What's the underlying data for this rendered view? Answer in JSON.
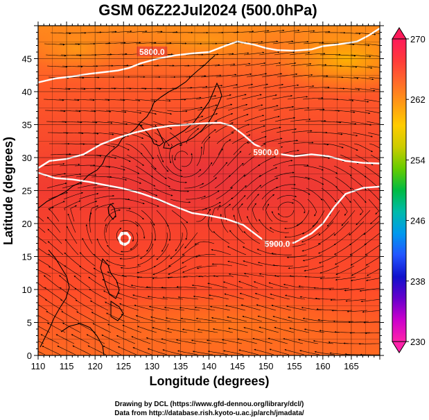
{
  "title": "GSM 06Z22Jul2024 (500.0hPa)",
  "xlabel": "Longitude (degrees)",
  "ylabel": "Latitude  (degrees)",
  "x_ticks": [
    "110",
    "115",
    "120",
    "125",
    "130",
    "135",
    "140",
    "145",
    "150",
    "155",
    "160",
    "165"
  ],
  "y_ticks": [
    "0",
    "5",
    "10",
    "15",
    "20",
    "25",
    "30",
    "35",
    "40",
    "45"
  ],
  "colorbar": {
    "ticks": [
      "270",
      "262",
      "254",
      "246",
      "238",
      "230"
    ],
    "stops": [
      "#ff1a5a",
      "#ff3a3a",
      "#ff6a2a",
      "#ff9a14",
      "#ffcc00",
      "#cccc00",
      "#66cc00",
      "#00bb44",
      "#00bbaa",
      "#0099ee",
      "#2255ff",
      "#1111cc",
      "#6600cc",
      "#cc00cc",
      "#ff22aa"
    ]
  },
  "contour_labels": [
    "5800.0",
    "5900.0",
    "5900.0"
  ],
  "footer": {
    "line1": "Drawing by DCL (https://www.gfd-dennou.org/library/dcl/)",
    "line2": "Data from http://database.rish.kyoto-u.ac.jp/arch/jmadata/"
  },
  "chart_data": {
    "type": "heatmap",
    "title": "GSM 06Z22Jul2024 (500.0hPa)",
    "xlabel": "Longitude (degrees)",
    "ylabel": "Latitude  (degrees)",
    "xlim": [
      110,
      170
    ],
    "ylim": [
      0,
      50
    ],
    "colorbar_range": [
      230,
      270
    ],
    "colorbar_ticks": [
      230,
      238,
      246,
      254,
      262,
      270
    ],
    "contours": [
      {
        "label": "5800.0",
        "points": [
          [
            110,
            41.4
          ],
          [
            113,
            42
          ],
          [
            116,
            42.3
          ],
          [
            119,
            42.7
          ],
          [
            122,
            43
          ],
          [
            124,
            43.2
          ],
          [
            126,
            43.6
          ],
          [
            128,
            44.3
          ],
          [
            131,
            45
          ],
          [
            134,
            45.5
          ],
          [
            137,
            45.8
          ],
          [
            140,
            46
          ],
          [
            143,
            47
          ],
          [
            145,
            47.6
          ],
          [
            148,
            47.1
          ],
          [
            150,
            46.6
          ],
          [
            152,
            46.3
          ],
          [
            155,
            46.2
          ],
          [
            158,
            46.4
          ],
          [
            160,
            46.9
          ],
          [
            163,
            47.2
          ],
          [
            166,
            47.6
          ],
          [
            168,
            48.5
          ],
          [
            170,
            49.6
          ]
        ]
      },
      {
        "label": "5900.0",
        "points": [
          [
            110,
            28.4
          ],
          [
            112,
            29.5
          ],
          [
            115,
            29.8
          ],
          [
            118,
            30.5
          ],
          [
            121,
            32
          ],
          [
            124,
            33
          ],
          [
            127,
            33.8
          ],
          [
            130,
            34.4
          ],
          [
            133,
            34.8
          ],
          [
            136,
            35
          ],
          [
            139,
            35.2
          ],
          [
            142,
            35.3
          ],
          [
            144,
            34.8
          ],
          [
            146,
            33.5
          ],
          [
            148,
            32
          ],
          [
            150,
            31.2
          ],
          [
            152,
            30.6
          ],
          [
            155,
            30.2
          ],
          [
            158,
            30.5
          ],
          [
            161,
            30.2
          ],
          [
            164,
            29.5
          ],
          [
            167,
            29.2
          ],
          [
            170,
            29.1
          ]
        ]
      },
      {
        "label": "5900.0",
        "points": [
          [
            110,
            27.7
          ],
          [
            113,
            26.9
          ],
          [
            116,
            26.7
          ],
          [
            119,
            26.3
          ],
          [
            122,
            25.8
          ],
          [
            125,
            25.3
          ],
          [
            128,
            24.6
          ],
          [
            131,
            23.7
          ],
          [
            134,
            22.6
          ],
          [
            137,
            21.6
          ],
          [
            140,
            21.2
          ],
          [
            143,
            20.7
          ],
          [
            146,
            19.8
          ],
          [
            148,
            18.5
          ],
          [
            150,
            17.2
          ],
          [
            152,
            16.8
          ],
          [
            155,
            17.1
          ],
          [
            158,
            18.5
          ],
          [
            160,
            20
          ],
          [
            162,
            22.5
          ],
          [
            164,
            24.5
          ],
          [
            167,
            25.4
          ],
          [
            170,
            25.6
          ]
        ]
      },
      {
        "label": "",
        "points": [
          [
            125.2,
            16.7
          ],
          [
            125.9,
            17.1
          ],
          [
            126.2,
            17.9
          ],
          [
            125.6,
            18.6
          ],
          [
            124.6,
            18.6
          ],
          [
            124.1,
            17.8
          ],
          [
            124.5,
            17
          ],
          [
            125.2,
            16.7
          ]
        ]
      }
    ],
    "streamline_vortices": [
      {
        "type": "cyclone",
        "lon": 125.2,
        "lat": 17.7
      },
      {
        "type": "anticyclone",
        "lon": 135.5,
        "lat": 29.0
      },
      {
        "type": "cyclone",
        "lon": 153.5,
        "lat": 22.0
      }
    ]
  }
}
